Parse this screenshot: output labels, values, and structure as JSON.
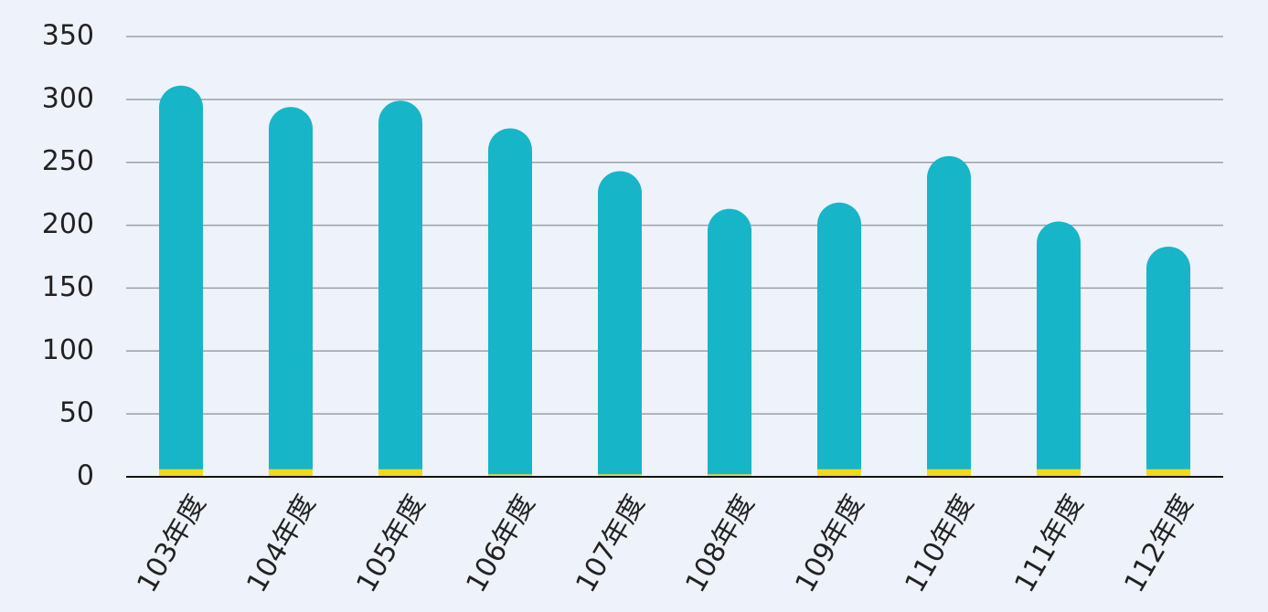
{
  "chart_data": {
    "type": "stacked-bar",
    "categories": [
      "103年度",
      "104年度",
      "105年度",
      "106年度",
      "107年度",
      "108年度",
      "109年度",
      "110年度",
      "111年度",
      "112年度"
    ],
    "series": [
      {
        "color": "#f0d91c",
        "values": [
          6,
          6,
          6,
          2,
          2,
          2,
          6,
          6,
          6,
          6
        ]
      },
      {
        "color": "#17b5c8",
        "values": [
          305,
          288,
          293,
          275,
          241,
          211,
          212,
          249,
          197,
          177
        ]
      }
    ],
    "ylim": [
      0,
      350
    ],
    "yticks": [
      0,
      50,
      100,
      150,
      200,
      250,
      300,
      350
    ],
    "grid": true
  }
}
